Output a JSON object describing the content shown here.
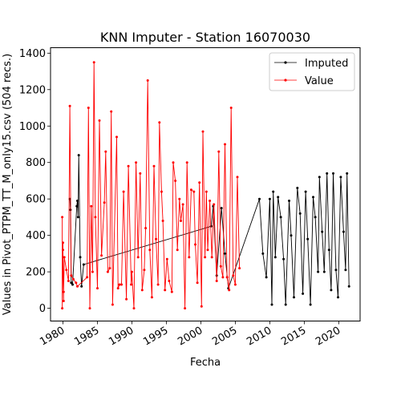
{
  "chart_data": {
    "type": "line",
    "title": "KNN Imputer - Station 16070030",
    "xlabel": "Fecha",
    "ylabel": "Values in Pivot_PTPM_TT_M_only15.csv (504 recs.)",
    "xlim": [
      1978.2,
      2023.1
    ],
    "ylim": [
      -70,
      1430
    ],
    "x_ticks": [
      1980,
      1985,
      1990,
      1995,
      2000,
      2005,
      2010,
      2015,
      2020
    ],
    "y_ticks": [
      0,
      200,
      400,
      600,
      800,
      1000,
      1200,
      1400
    ],
    "legend_position": "top-right",
    "series": [
      {
        "name": "Imputed",
        "color": "#000000",
        "points": [
          [
            1981.0,
            600
          ],
          [
            1981.1,
            540
          ],
          [
            1981.2,
            140
          ],
          [
            1981.4,
            130
          ],
          [
            1982.0,
            560
          ],
          [
            1982.1,
            590
          ],
          [
            1982.2,
            500
          ],
          [
            1982.3,
            840
          ],
          [
            1982.5,
            280
          ],
          [
            1982.7,
            120
          ],
          [
            1983.0,
            240
          ],
          [
            2001.5,
            450
          ],
          [
            2001.8,
            560
          ],
          [
            2002.3,
            180
          ],
          [
            2003.0,
            550
          ],
          [
            2003.5,
            300
          ],
          [
            2004.0,
            110
          ],
          [
            2008.5,
            600
          ],
          [
            2009.0,
            300
          ],
          [
            2009.5,
            170
          ],
          [
            2010.0,
            600
          ],
          [
            2010.3,
            20
          ],
          [
            2010.5,
            640
          ],
          [
            2010.8,
            280
          ],
          [
            2011.2,
            610
          ],
          [
            2011.6,
            500
          ],
          [
            2012.0,
            270
          ],
          [
            2012.3,
            20
          ],
          [
            2012.8,
            590
          ],
          [
            2013.1,
            400
          ],
          [
            2013.5,
            60
          ],
          [
            2014.0,
            660
          ],
          [
            2014.4,
            520
          ],
          [
            2014.8,
            80
          ],
          [
            2015.2,
            640
          ],
          [
            2015.5,
            380
          ],
          [
            2015.9,
            20
          ],
          [
            2016.3,
            610
          ],
          [
            2016.6,
            500
          ],
          [
            2017.0,
            200
          ],
          [
            2017.2,
            720
          ],
          [
            2017.6,
            420
          ],
          [
            2017.9,
            200
          ],
          [
            2018.3,
            740
          ],
          [
            2018.6,
            320
          ],
          [
            2018.9,
            100
          ],
          [
            2019.2,
            740
          ],
          [
            2019.6,
            210
          ],
          [
            2019.9,
            60
          ],
          [
            2020.3,
            720
          ],
          [
            2020.7,
            420
          ],
          [
            2021.0,
            210
          ],
          [
            2021.2,
            740
          ],
          [
            2021.5,
            120
          ]
        ]
      },
      {
        "name": "Value",
        "color": "#ff0000",
        "points": [
          [
            1979.9,
            500
          ],
          [
            1979.9,
            0
          ],
          [
            1980.0,
            360
          ],
          [
            1980.0,
            320
          ],
          [
            1980.1,
            40
          ],
          [
            1980.1,
            90
          ],
          [
            1980.2,
            280
          ],
          [
            1980.5,
            210
          ],
          [
            1980.8,
            150
          ],
          [
            1981.0,
            1110
          ],
          [
            1981.2,
            180
          ],
          [
            1981.5,
            160
          ],
          [
            1981.9,
            140
          ],
          [
            1982.1,
            120
          ],
          [
            1983.5,
            170
          ],
          [
            1983.7,
            1100
          ],
          [
            1983.9,
            0
          ],
          [
            1984.1,
            560
          ],
          [
            1984.3,
            200
          ],
          [
            1984.5,
            1350
          ],
          [
            1984.7,
            500
          ],
          [
            1985.0,
            110
          ],
          [
            1985.3,
            1030
          ],
          [
            1985.6,
            290
          ],
          [
            1986.0,
            580
          ],
          [
            1986.2,
            860
          ],
          [
            1986.5,
            200
          ],
          [
            1986.8,
            220
          ],
          [
            1987.0,
            1080
          ],
          [
            1987.2,
            20
          ],
          [
            1987.8,
            940
          ],
          [
            1988.0,
            110
          ],
          [
            1988.2,
            130
          ],
          [
            1988.5,
            130
          ],
          [
            1988.8,
            640
          ],
          [
            1989.2,
            50
          ],
          [
            1989.5,
            780
          ],
          [
            1989.9,
            130
          ],
          [
            1990.0,
            200
          ],
          [
            1990.3,
            0
          ],
          [
            1990.6,
            800
          ],
          [
            1990.9,
            280
          ],
          [
            1991.2,
            740
          ],
          [
            1991.5,
            100
          ],
          [
            1991.8,
            210
          ],
          [
            1992.0,
            440
          ],
          [
            1992.3,
            1250
          ],
          [
            1992.6,
            320
          ],
          [
            1992.9,
            60
          ],
          [
            1993.2,
            780
          ],
          [
            1993.5,
            380
          ],
          [
            1993.8,
            130
          ],
          [
            1994.0,
            1020
          ],
          [
            1994.3,
            640
          ],
          [
            1994.5,
            480
          ],
          [
            1994.8,
            100
          ],
          [
            1995.1,
            270
          ],
          [
            1995.4,
            150
          ],
          [
            1995.8,
            90
          ],
          [
            1996.0,
            800
          ],
          [
            1996.3,
            700
          ],
          [
            1996.6,
            320
          ],
          [
            1996.9,
            600
          ],
          [
            1997.1,
            480
          ],
          [
            1997.4,
            570
          ],
          [
            1997.7,
            0
          ],
          [
            1998.0,
            800
          ],
          [
            1998.3,
            280
          ],
          [
            1998.6,
            650
          ],
          [
            1999.0,
            640
          ],
          [
            1999.2,
            350
          ],
          [
            1999.5,
            140
          ],
          [
            1999.8,
            690
          ],
          [
            2000.1,
            10
          ],
          [
            2000.3,
            970
          ],
          [
            2000.6,
            280
          ],
          [
            2000.8,
            640
          ],
          [
            2001.0,
            320
          ],
          [
            2001.3,
            590
          ],
          [
            2001.6,
            280
          ],
          [
            2001.9,
            570
          ],
          [
            2002.3,
            150
          ],
          [
            2002.6,
            860
          ],
          [
            2002.9,
            230
          ],
          [
            2003.2,
            170
          ],
          [
            2003.5,
            900
          ],
          [
            2003.8,
            170
          ],
          [
            2004.1,
            100
          ],
          [
            2004.4,
            1100
          ],
          [
            2004.7,
            180
          ],
          [
            2005.0,
            130
          ],
          [
            2005.3,
            720
          ],
          [
            2005.6,
            220
          ]
        ]
      }
    ]
  }
}
